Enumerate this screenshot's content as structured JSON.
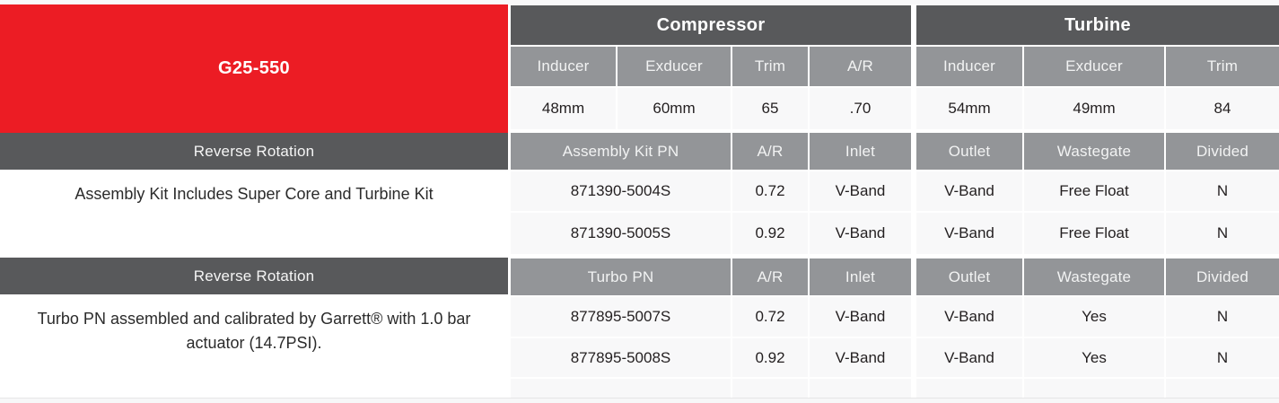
{
  "colors": {
    "brand_red": "#EC1C24",
    "dark_band": "#58595B",
    "header_gray": "#939598",
    "cell_bg": "#F8F8F9",
    "cell_text": "#231F20"
  },
  "left": {
    "title": "G25-550",
    "sections": [
      {
        "band": "Reverse Rotation",
        "note": "Assembly Kit Includes Super Core and Turbine Kit"
      },
      {
        "band": "Reverse Rotation",
        "note": "Turbo PN assembled and calibrated by Garrett® with 1.0 bar actuator (14.7PSI)."
      }
    ]
  },
  "specs": {
    "compressor_label": "Compressor",
    "turbine_label": "Turbine",
    "compressor_headers": [
      "Inducer",
      "Exducer",
      "Trim",
      "A/R"
    ],
    "compressor_values": [
      "48mm",
      "60mm",
      "65",
      ".70"
    ],
    "turbine_headers": [
      "Inducer",
      "Exducer",
      "Trim"
    ],
    "turbine_values": [
      "54mm",
      "49mm",
      "84"
    ]
  },
  "assembly": {
    "headers": [
      "Assembly Kit PN",
      "A/R",
      "Inlet",
      "Outlet",
      "Wastegate",
      "Divided"
    ],
    "rows": [
      [
        "871390-5004S",
        "0.72",
        "V-Band",
        "V-Band",
        "Free Float",
        "N"
      ],
      [
        "871390-5005S",
        "0.92",
        "V-Band",
        "V-Band",
        "Free Float",
        "N"
      ]
    ]
  },
  "turbo": {
    "headers": [
      "Turbo PN",
      "A/R",
      "Inlet",
      "Outlet",
      "Wastegate",
      "Divided"
    ],
    "rows": [
      [
        "877895-5007S",
        "0.72",
        "V-Band",
        "V-Band",
        "Yes",
        "N"
      ],
      [
        "877895-5008S",
        "0.92",
        "V-Band",
        "V-Band",
        "Yes",
        "N"
      ]
    ]
  }
}
